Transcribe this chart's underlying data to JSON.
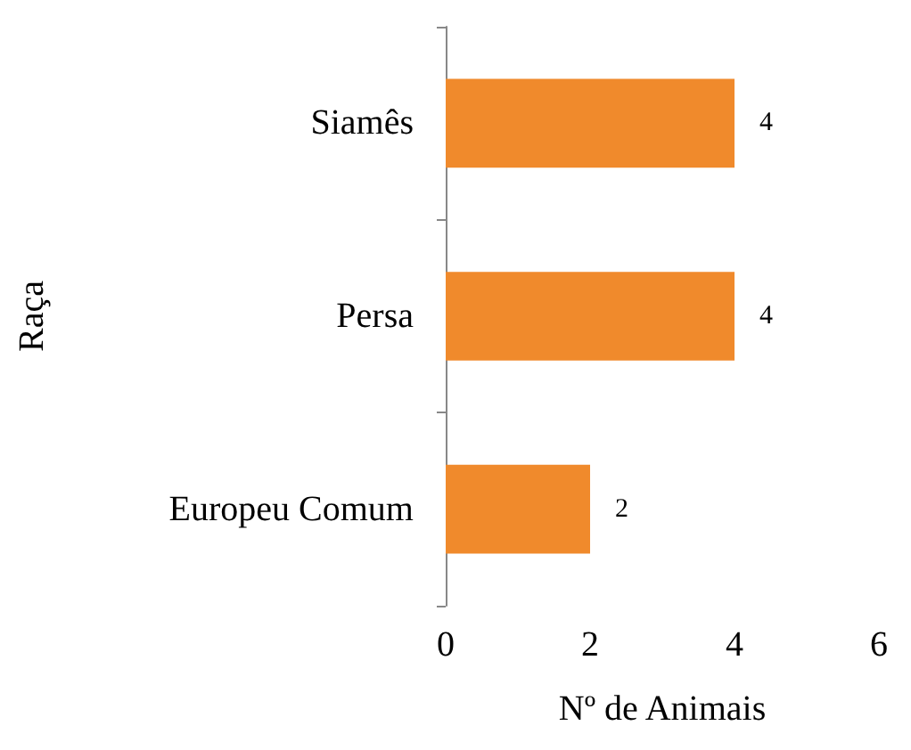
{
  "chart_data": {
    "type": "bar",
    "orientation": "horizontal",
    "xlabel": "Nº de Animais",
    "ylabel": "Raça",
    "categories": [
      "Siamês",
      "Persa",
      "Europeu Comum"
    ],
    "values": [
      4,
      4,
      2
    ],
    "color": "#f08a2c",
    "xlim": [
      0,
      6
    ],
    "xticks": [
      0,
      2,
      4,
      6
    ],
    "grid": false,
    "data_labels": true
  }
}
